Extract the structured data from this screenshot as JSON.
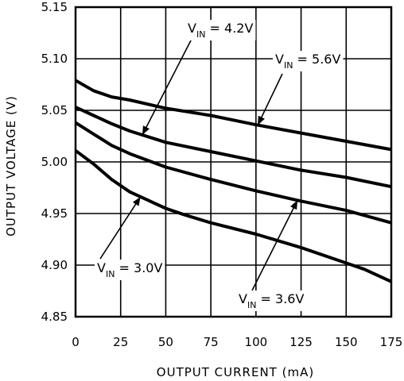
{
  "chart_data": {
    "type": "line",
    "title": "",
    "xlabel": "OUTPUT CURRENT (mA)",
    "ylabel": "OUTPUT VOLTAGE (V)",
    "xlim": [
      0,
      175
    ],
    "ylim": [
      4.85,
      5.15
    ],
    "x_ticks": [
      "0",
      "25",
      "50",
      "75",
      "100",
      "125",
      "150",
      "175"
    ],
    "y_ticks": [
      "4.85",
      "4.90",
      "4.95",
      "5.00",
      "5.05",
      "5.10",
      "5.15"
    ],
    "grid": true,
    "series": [
      {
        "name": "VIN = 5.6V",
        "x": [
          0,
          10,
          20,
          30,
          50,
          75,
          100,
          125,
          150,
          175
        ],
        "y": [
          5.079,
          5.069,
          5.063,
          5.06,
          5.052,
          5.045,
          5.036,
          5.028,
          5.02,
          5.012
        ]
      },
      {
        "name": "VIN = 4.2V",
        "x": [
          0,
          10,
          20,
          30,
          50,
          75,
          100,
          125,
          150,
          175
        ],
        "y": [
          5.053,
          5.045,
          5.037,
          5.03,
          5.019,
          5.01,
          5.001,
          4.992,
          4.985,
          4.976
        ]
      },
      {
        "name": "VIN = 3.6V",
        "x": [
          0,
          10,
          20,
          30,
          50,
          75,
          100,
          125,
          150,
          175
        ],
        "y": [
          5.038,
          5.027,
          5.016,
          5.008,
          4.995,
          4.983,
          4.972,
          4.962,
          4.953,
          4.941
        ]
      },
      {
        "name": "VIN = 3.0V",
        "x": [
          0,
          10,
          20,
          30,
          40,
          50,
          60,
          75,
          100,
          125,
          150,
          160,
          175
        ],
        "y": [
          5.011,
          4.998,
          4.983,
          4.971,
          4.963,
          4.955,
          4.949,
          4.941,
          4.93,
          4.917,
          4.902,
          4.896,
          4.884
        ]
      }
    ],
    "annotations": [
      {
        "series": "VIN = 4.2V",
        "main": "V",
        "sub": "IN",
        "rest": " = 4.2V"
      },
      {
        "series": "VIN = 5.6V",
        "main": "V",
        "sub": "IN",
        "rest": " = 5.6V"
      },
      {
        "series": "VIN = 3.0V",
        "main": "V",
        "sub": "IN",
        "rest": " = 3.0V"
      },
      {
        "series": "VIN = 3.6V",
        "main": "V",
        "sub": "IN",
        "rest": " = 3.6V"
      }
    ],
    "line_color": "#000000",
    "grid_color": "#000000"
  }
}
